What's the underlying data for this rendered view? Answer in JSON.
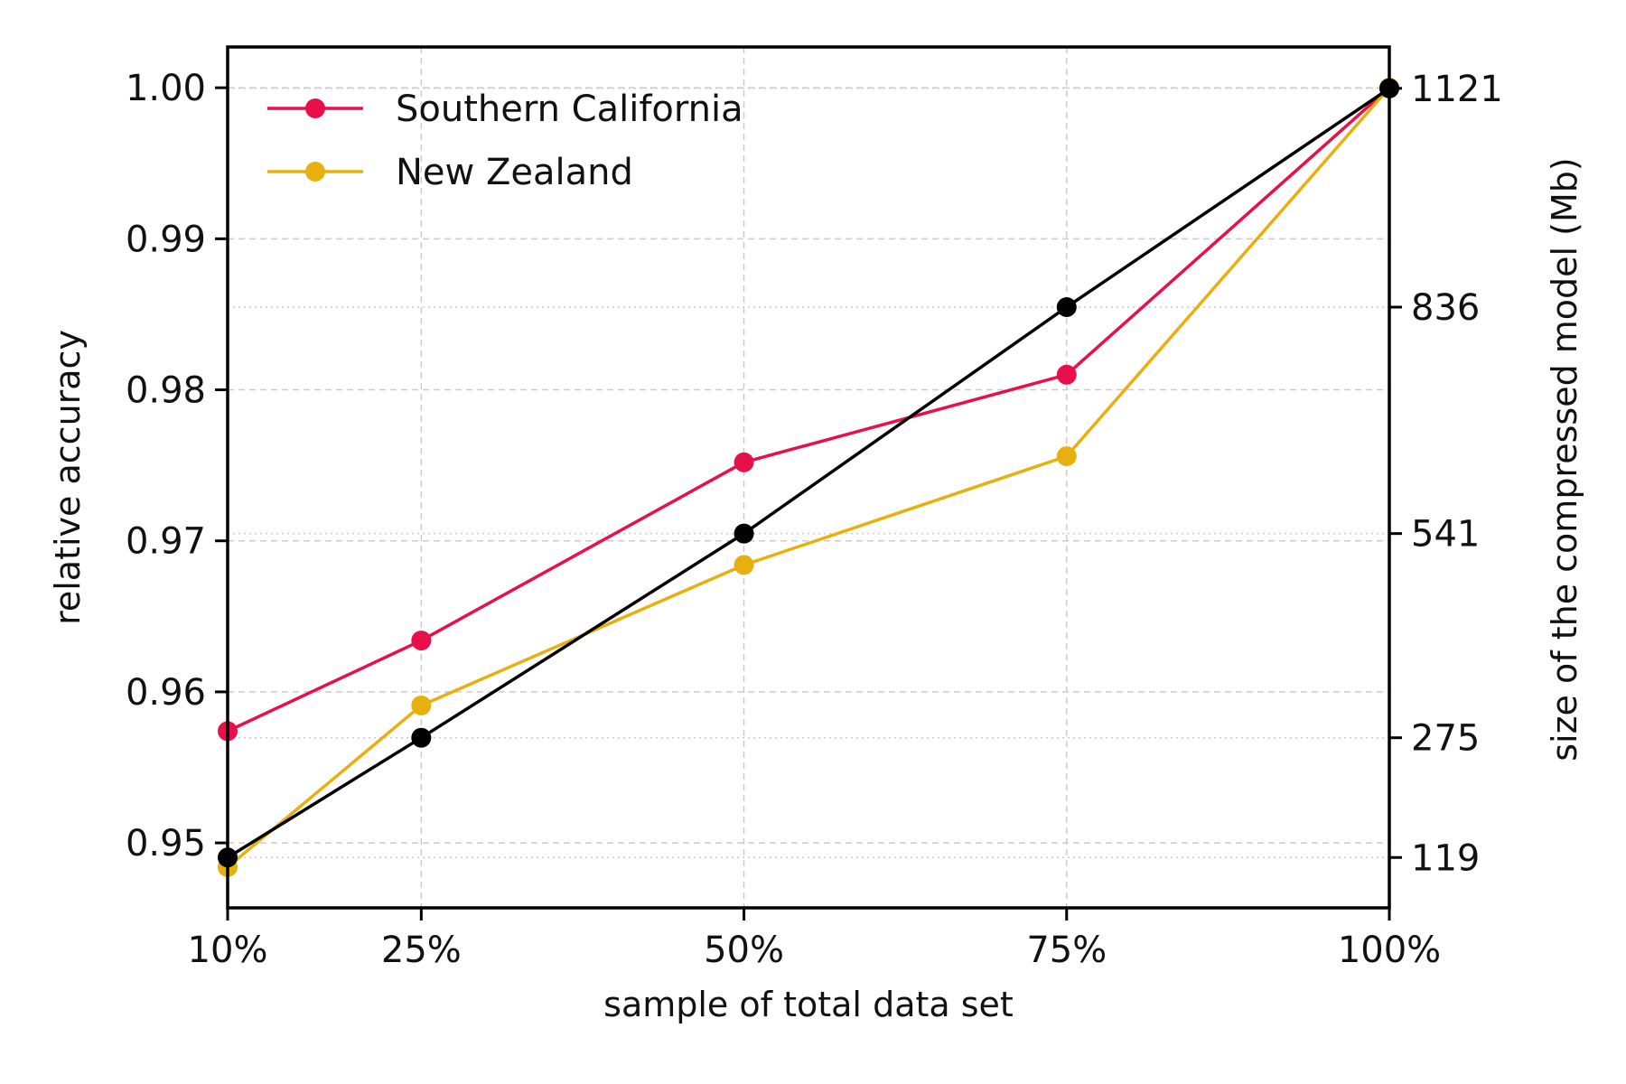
{
  "chart_data": {
    "type": "line",
    "xlabel": "sample of total data set",
    "ylabel": "relative accuracy",
    "y2label": "size of the compressed model (Mb)",
    "x_categories": [
      "10%",
      "25%",
      "50%",
      "75%",
      "100%"
    ],
    "x_values": [
      10,
      25,
      50,
      75,
      100
    ],
    "xlim": [
      10,
      100
    ],
    "ylim": [
      0.9457,
      1.0027
    ],
    "yticks": [
      0.95,
      0.96,
      0.97,
      0.98,
      0.99,
      1.0
    ],
    "ytick_labels": [
      "0.95",
      "0.96",
      "0.97",
      "0.98",
      "0.99",
      "1.00"
    ],
    "y2ticks": [
      119,
      275,
      541,
      836,
      1121
    ],
    "y2tick_labels": [
      "119",
      "275",
      "541",
      "836",
      "1121"
    ],
    "y2lim": [
      53.4,
      1174.9
    ],
    "grid": true,
    "legend_position": "top-left",
    "series": [
      {
        "name": "Southern California",
        "color": "#e8104a",
        "axis": "left",
        "values": [
          0.9574,
          0.9634,
          0.9752,
          0.981,
          1.0
        ]
      },
      {
        "name": "New Zealand",
        "color": "#e8b00f",
        "axis": "left",
        "values": [
          0.9484,
          0.9591,
          0.9684,
          0.9756,
          1.0
        ]
      },
      {
        "color": "#000000",
        "axis": "right",
        "values": [
          119,
          275,
          541,
          836,
          1121
        ]
      }
    ]
  }
}
